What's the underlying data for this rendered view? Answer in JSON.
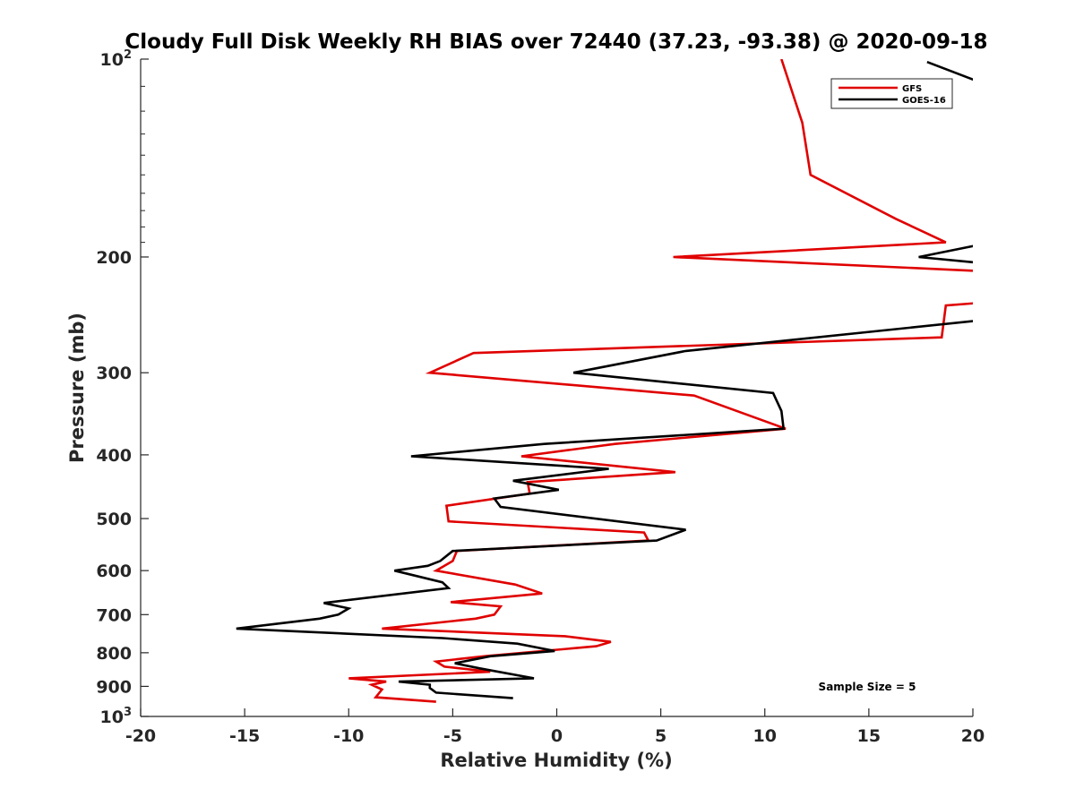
{
  "chart_data": {
    "type": "line",
    "title": "Cloudy Full Disk Weekly RH BIAS over 72440 (37.23, -93.38) @ 2020-09-18",
    "xlabel": "Relative Humidity (%)",
    "ylabel": "Pressure (mb)",
    "xlim": [
      -20,
      20
    ],
    "ylim": [
      100,
      1000
    ],
    "y_scale": "log",
    "y_reversed": true,
    "grid": false,
    "x_ticks": [
      "-20",
      "-15",
      "-10",
      "-5",
      "0",
      "5",
      "10",
      "15",
      "20"
    ],
    "y_ticks": [
      {
        "value": 100,
        "base": "10",
        "exp": "2"
      },
      {
        "value": 200,
        "label": "200"
      },
      {
        "value": 300,
        "label": "300"
      },
      {
        "value": 400,
        "label": "400"
      },
      {
        "value": 500,
        "label": "500"
      },
      {
        "value": 600,
        "label": "600"
      },
      {
        "value": 700,
        "label": "700"
      },
      {
        "value": 800,
        "label": "800"
      },
      {
        "value": 900,
        "label": "900"
      },
      {
        "value": 1000,
        "base": "10",
        "exp": "3"
      }
    ],
    "legend_position": "top-right",
    "annotation": "Sample Size = 5",
    "series": [
      {
        "name": "GFS",
        "color": "#e00000",
        "points": [
          [
            10.8,
            100
          ],
          [
            11.8,
            125
          ],
          [
            12.2,
            150
          ],
          [
            16.3,
            175
          ],
          [
            18.7,
            190
          ],
          [
            5.6,
            200
          ],
          [
            20.2,
            210
          ],
          null,
          [
            20.2,
            235
          ],
          [
            18.7,
            237
          ],
          [
            18.5,
            265
          ],
          [
            -4.0,
            280
          ],
          [
            -6.1,
            300
          ],
          [
            6.6,
            325
          ],
          [
            11.0,
            365
          ],
          [
            2.8,
            385
          ],
          [
            -1.7,
            402
          ],
          [
            5.7,
            425
          ],
          [
            -1.4,
            440
          ],
          [
            -1.3,
            458
          ],
          [
            -5.3,
            478
          ],
          [
            -5.2,
            505
          ],
          [
            4.2,
            525
          ],
          [
            4.4,
            540
          ],
          [
            -4.8,
            560
          ],
          [
            -5.0,
            580
          ],
          [
            -5.8,
            600
          ],
          [
            -2.0,
            630
          ],
          [
            -0.7,
            650
          ],
          [
            -5.1,
            670
          ],
          [
            -2.7,
            680
          ],
          [
            -3.0,
            700
          ],
          [
            -3.9,
            710
          ],
          [
            -8.4,
            735
          ],
          [
            0.4,
            755
          ],
          [
            2.6,
            770
          ],
          [
            1.9,
            782
          ],
          [
            -3.5,
            810
          ],
          [
            -5.8,
            825
          ],
          [
            -5.4,
            840
          ],
          [
            -3.2,
            855
          ],
          [
            -10.0,
            875
          ],
          [
            -8.2,
            885
          ],
          [
            -8.9,
            895
          ],
          [
            -8.4,
            910
          ],
          [
            -8.7,
            935
          ],
          [
            -5.8,
            950
          ]
        ]
      },
      {
        "name": "GOES-16",
        "color": "#000000",
        "points": [
          [
            17.8,
            101
          ],
          [
            20.2,
            108
          ],
          null,
          [
            20.2,
            192
          ],
          [
            17.4,
            200
          ],
          [
            20.2,
            204
          ],
          null,
          [
            20.2,
            250
          ],
          [
            6.2,
            278
          ],
          [
            0.8,
            300
          ],
          [
            10.4,
            322
          ],
          [
            10.8,
            343
          ],
          [
            10.9,
            365
          ],
          [
            -0.6,
            385
          ],
          [
            -7.0,
            402
          ],
          [
            2.5,
            420
          ],
          [
            -2.1,
            438
          ],
          [
            0.1,
            452
          ],
          [
            -3.0,
            466
          ],
          [
            -2.7,
            480
          ],
          [
            6.2,
            520
          ],
          [
            4.8,
            540
          ],
          [
            -5.0,
            560
          ],
          [
            -5.6,
            580
          ],
          [
            -6.2,
            590
          ],
          [
            -7.8,
            600
          ],
          [
            -5.5,
            625
          ],
          [
            -5.2,
            638
          ],
          [
            -11.2,
            672
          ],
          [
            -10.0,
            685
          ],
          [
            -10.5,
            700
          ],
          [
            -11.4,
            710
          ],
          [
            -15.4,
            735
          ],
          [
            -5.5,
            760
          ],
          [
            -1.9,
            775
          ],
          [
            -0.1,
            795
          ],
          [
            -3.2,
            810
          ],
          [
            -4.9,
            830
          ],
          [
            -3.7,
            845
          ],
          [
            -1.1,
            875
          ],
          [
            -7.6,
            885
          ],
          [
            -6.1,
            895
          ],
          [
            -6.1,
            905
          ],
          [
            -5.8,
            920
          ],
          [
            -2.1,
            938
          ]
        ]
      }
    ]
  }
}
